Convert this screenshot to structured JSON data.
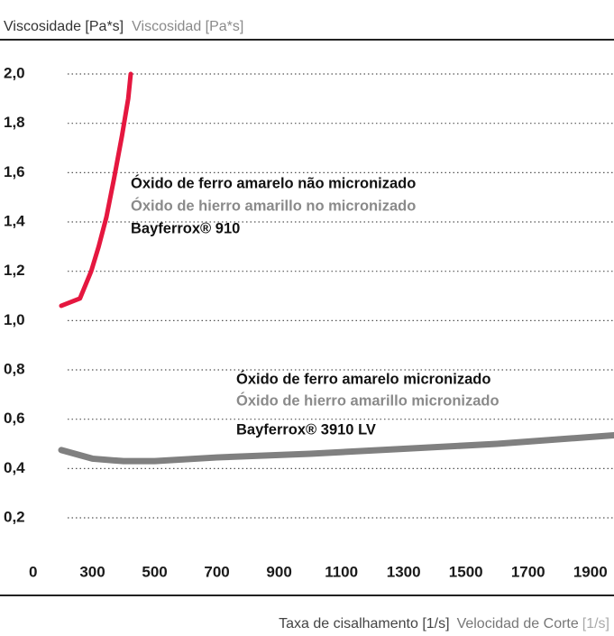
{
  "chart_data": {
    "type": "line",
    "title": [
      "Viscosidade [Pa*s]",
      "Viscosidad [Pa*s]"
    ],
    "x_label": [
      "Taxa de cisalhamento [1/s]",
      "Velocidad de Corte",
      "[1/s]"
    ],
    "xlim": [
      200,
      1976
    ],
    "xticks": [
      300,
      500,
      700,
      900,
      1100,
      1300,
      1500,
      1700,
      1900
    ],
    "ylim": [
      0,
      2.1
    ],
    "yticks": [
      0,
      {
        "value": 0.2,
        "label": "0,2"
      },
      {
        "value": 0.4,
        "label": "0,4"
      },
      {
        "value": 0.6,
        "label": "0,6"
      },
      {
        "value": 0.8,
        "label": "0,8"
      },
      {
        "value": 1.0,
        "label": "1,0"
      },
      {
        "value": 1.2,
        "label": "1,2"
      },
      {
        "value": 1.4,
        "label": "1,4"
      },
      {
        "value": 1.6,
        "label": "1,6"
      },
      {
        "value": 1.8,
        "label": "1,8"
      },
      {
        "value": 2.0,
        "label": "2,0"
      }
    ],
    "grid": true,
    "series": [
      {
        "name": "Bayferrox® 910",
        "color": "#e5173f",
        "x": [
          200,
          260,
          296,
          320,
          345,
          370,
          395,
          415,
          423
        ],
        "values": [
          1.06,
          1.09,
          1.2,
          1.3,
          1.42,
          1.58,
          1.75,
          1.9,
          2.0
        ]
      },
      {
        "name": "Bayferrox® 3910 LV",
        "color": "#808080",
        "x": [
          200,
          300,
          400,
          500,
          700,
          1000,
          1300,
          1600,
          1976
        ],
        "values": [
          0.475,
          0.44,
          0.43,
          0.43,
          0.445,
          0.46,
          0.48,
          0.5,
          0.535
        ]
      }
    ],
    "annotations": [
      [
        "Óxido de ferro amarelo não micronizado",
        "Óxido de hierro amarillo no micronizado",
        "Bayferrox® 910"
      ],
      [
        "Óxido de ferro amarelo micronizado",
        "Óxido de hierro amarillo micronizado",
        "Bayferrox® 3910 LV"
      ]
    ]
  }
}
